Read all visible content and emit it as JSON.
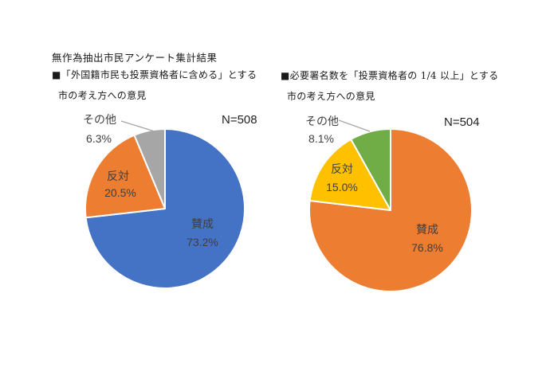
{
  "document_title": "無作為抽出市民アンケート集計結果",
  "charts": [
    {
      "heading_line1": "■「外国籍市民も投票資格者に含める」とする",
      "heading_line2": "市の考え方への意見",
      "n_label": "N=508",
      "slices": [
        {
          "label": "賛成",
          "pct": "73.2%",
          "value": 73.2,
          "color": "#4472C4"
        },
        {
          "label": "反対",
          "pct": "20.5%",
          "value": 20.5,
          "color": "#ED7D31"
        },
        {
          "label": "その他",
          "pct": "6.3%",
          "value": 6.3,
          "color": "#A6A6A6"
        }
      ]
    },
    {
      "heading_line1": "■必要署名数を「投票資格者の 1/4 以上」とする",
      "heading_line2": "市の考え方への意見",
      "n_label": "N=504",
      "slices": [
        {
          "label": "賛成",
          "pct": "76.8%",
          "value": 76.8,
          "color": "#ED7D31"
        },
        {
          "label": "反対",
          "pct": "15.0%",
          "value": 15.0,
          "color": "#FFC000"
        },
        {
          "label": "その他",
          "pct": "8.1%",
          "value": 8.1,
          "color": "#70AD47"
        }
      ]
    }
  ],
  "chart_data": [
    {
      "type": "pie",
      "title": "■「外国籍市民も投票資格者に含める」とする市の考え方への意見",
      "n_label": "N=508",
      "categories": [
        "賛成",
        "反対",
        "その他"
      ],
      "values": [
        73.2,
        20.5,
        6.3
      ],
      "value_labels": [
        "73.2%",
        "20.5%",
        "6.3%"
      ],
      "colors": [
        "#4472C4",
        "#ED7D31",
        "#A6A6A6"
      ],
      "start_angle": 0,
      "direction": "clockwise",
      "legend": "none",
      "label_style": "category name + percent on slice, その他 labeled outside with leader line"
    },
    {
      "type": "pie",
      "title": "■必要署名数を「投票資格者の 1/4 以上」とする市の考え方への意見",
      "n_label": "N=504",
      "categories": [
        "賛成",
        "反対",
        "その他"
      ],
      "values": [
        76.8,
        15.0,
        8.1
      ],
      "value_labels": [
        "76.8%",
        "15.0%",
        "8.1%"
      ],
      "colors": [
        "#ED7D31",
        "#FFC000",
        "#70AD47"
      ],
      "start_angle": 0,
      "direction": "clockwise",
      "legend": "none",
      "label_style": "category name + percent on slice, その他 labeled outside with leader line"
    }
  ]
}
